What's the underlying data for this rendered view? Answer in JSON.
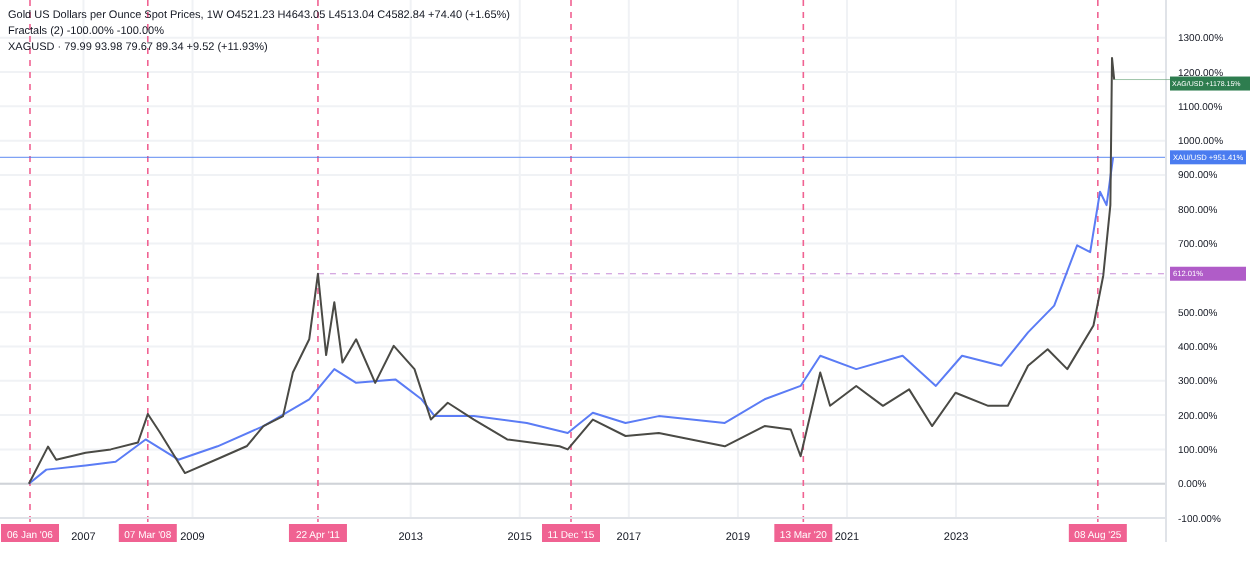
{
  "chart_data": {
    "type": "line",
    "title": "Gold US Dollars per Ounce Spot Prices, 1W  O4521.23  H4643.05  L4513.04  C4582.84  +74.40 (+1.65%)",
    "annotations": [
      "Fractals (2)  -100.00%  -100.00%",
      "XAGUSD · 79.99  93.98  79.67  89.34  +9.52 (+11.93%)",
      {
        "text": "XAG/USD +1178.15%",
        "x": 2025.9,
        "y": 1178.15
      }
    ],
    "series": [
      {
        "color": "#5b7cf5",
        "x": [
          2006.0,
          2006.32,
          2007.04,
          2007.59,
          2008.14,
          2008.74,
          2009.46,
          2010.3,
          2011.14,
          2011.6,
          2012.0,
          2012.72,
          2013.2,
          2013.44,
          2014.16,
          2015.13,
          2015.88,
          2016.34,
          2016.94,
          2017.55,
          2018.76,
          2019.49,
          2020.15,
          2020.51,
          2021.17,
          2022.02,
          2022.63,
          2023.11,
          2023.83,
          2024.32,
          2024.8,
          2025.22,
          2025.46,
          2025.64,
          2025.76,
          2025.88
        ],
        "values": [
          0,
          41,
          53,
          64,
          129,
          70,
          109,
          168,
          246,
          334,
          294,
          304,
          246,
          197,
          197,
          177,
          148,
          207,
          177,
          197,
          177,
          246,
          285,
          373,
          334,
          373,
          285,
          373,
          344,
          441,
          519,
          695,
          675,
          851,
          812,
          951
        ]
      },
      {
        "color": "#4a4a45",
        "x": [
          2006.0,
          2006.35,
          2006.5,
          2007.04,
          2007.5,
          2008.0,
          2008.18,
          2008.4,
          2008.86,
          2009.5,
          2010.0,
          2010.3,
          2010.66,
          2010.84,
          2011.14,
          2011.3,
          2011.45,
          2011.6,
          2011.75,
          2012.0,
          2012.35,
          2012.69,
          2013.07,
          2013.37,
          2013.68,
          2014.16,
          2014.77,
          2015.73,
          2015.88,
          2016.34,
          2016.94,
          2017.55,
          2018.76,
          2019.49,
          2019.97,
          2020.15,
          2020.51,
          2020.69,
          2021.17,
          2021.66,
          2022.14,
          2022.56,
          2022.99,
          2023.59,
          2023.95,
          2024.32,
          2024.68,
          2025.04,
          2025.52,
          2025.7,
          2025.83,
          2025.86,
          2025.9
        ],
        "values": [
          0,
          108,
          70,
          90,
          100,
          120,
          203,
          150,
          31,
          75,
          110,
          168,
          197,
          324,
          421,
          612,
          375,
          529,
          353,
          421,
          294,
          402,
          334,
          187,
          236,
          187,
          129,
          109,
          100,
          187,
          139,
          148,
          109,
          168,
          158,
          80,
          324,
          227,
          285,
          227,
          275,
          168,
          265,
          227,
          227,
          344,
          392,
          334,
          461,
          607,
          812,
          1241,
          1178
        ]
      }
    ],
    "xlim": [
      2005.47,
      2026.85
    ],
    "xticks": [
      2007,
      2009,
      2013,
      2015,
      2017,
      2019,
      2021,
      2023
    ],
    "ylim": [
      -100,
      1410
    ],
    "yticks": [
      {
        "value": -100,
        "label": "-100.00%"
      },
      {
        "value": 0,
        "label": "0.00%"
      },
      {
        "value": 100,
        "label": "100.00%"
      },
      {
        "value": 200,
        "label": "200.00%"
      },
      {
        "value": 300,
        "label": "300.00%"
      },
      {
        "value": 400,
        "label": "400.00%"
      },
      {
        "value": 500,
        "label": "500.00%"
      },
      {
        "value": 600,
        "label": null
      },
      {
        "value": 700,
        "label": "700.00%"
      },
      {
        "value": 800,
        "label": "800.00%"
      },
      {
        "value": 900,
        "label": "900.00%"
      },
      {
        "value": 1000,
        "label": "1000.00%"
      },
      {
        "value": 1100,
        "label": "1100.00%"
      },
      {
        "value": 1200,
        "label": "1200.00%"
      },
      {
        "value": 1300,
        "label": "1300.00%"
      }
    ],
    "ref_lines": [
      {
        "axis": "x",
        "value": 2006.02,
        "label": "06 Jan '06",
        "color": "#f06292",
        "line_style": "dashed"
      },
      {
        "axis": "x",
        "value": 2008.18,
        "label": "07 Mar '08",
        "color": "#f06292",
        "line_style": "dashed"
      },
      {
        "axis": "x",
        "value": 2011.3,
        "label": "22 Apr '11",
        "color": "#f06292",
        "line_style": "dashed"
      },
      {
        "axis": "x",
        "value": 2015.94,
        "label": "11 Dec '15",
        "color": "#f06292",
        "line_style": "dashed"
      },
      {
        "axis": "x",
        "value": 2020.2,
        "label": "13 Mar '20",
        "color": "#f06292",
        "line_style": "dashed"
      },
      {
        "axis": "x",
        "value": 2025.6,
        "label": "08 Aug '25",
        "color": "#f06292",
        "line_style": "dashed"
      },
      {
        "axis": "y",
        "value": 612.01,
        "label": "612.01%",
        "color": "#b05cc8",
        "line_style": "dashed"
      },
      {
        "axis": "y",
        "value": 951.41,
        "label": "XAU/USD +951.41%",
        "color": "#4a7cf0",
        "line_style": "solid"
      }
    ],
    "grid": true
  }
}
